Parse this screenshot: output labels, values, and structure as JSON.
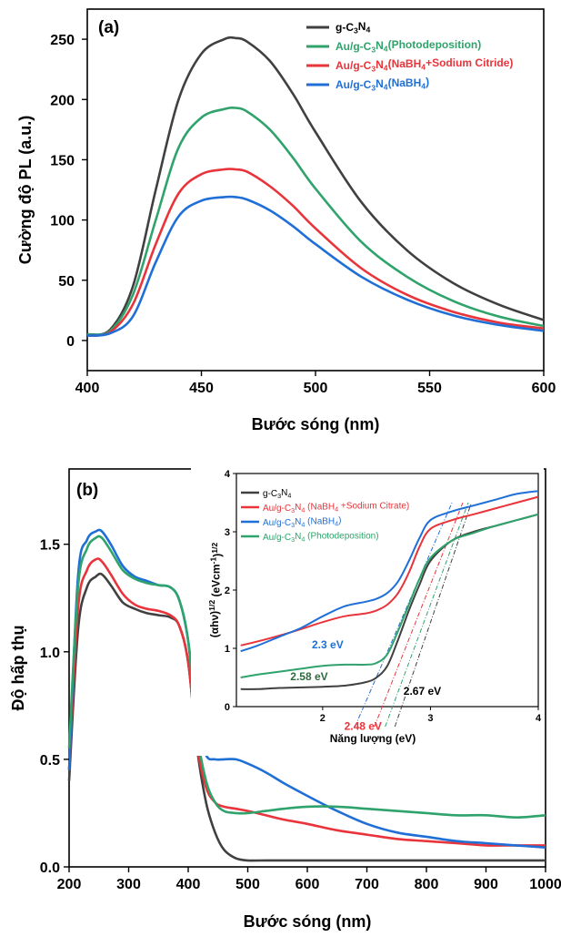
{
  "chart_data": [
    {
      "type": "line",
      "panel_label": "(a)",
      "xlabel": "Bước sóng (nm)",
      "ylabel": "Cường độ PL (a.u.)",
      "xlim": [
        400,
        600
      ],
      "ylim": [
        -25,
        275
      ],
      "x_ticks": [
        400,
        450,
        500,
        550,
        600
      ],
      "y_ticks": [
        0,
        50,
        100,
        150,
        200,
        250
      ],
      "legend_position": "top-right",
      "x": [
        400,
        410,
        420,
        430,
        440,
        450,
        460,
        465,
        470,
        480,
        490,
        500,
        520,
        540,
        560,
        580,
        600
      ],
      "series": [
        {
          "name": "g-C3N4",
          "label_parts": [
            "g-C",
            "3",
            "N",
            "4",
            ""
          ],
          "color": "#404040",
          "values": [
            5,
            9,
            45,
            125,
            200,
            238,
            250,
            251,
            248,
            232,
            205,
            173,
            115,
            75,
            48,
            30,
            17
          ]
        },
        {
          "name": "Au/g-C3N4(Photodeposition)",
          "label_parts": [
            "Au/g-C",
            "3",
            "N",
            "4",
            "(Photodeposition)"
          ],
          "color": "#2fa36b",
          "values": [
            5,
            8,
            38,
            100,
            160,
            185,
            192,
            193,
            190,
            175,
            152,
            126,
            82,
            53,
            33,
            20,
            12
          ]
        },
        {
          "name": "Au/g-C3N4(NaBH4+Sodium Citride)",
          "label_parts": [
            "Au/g-C",
            "3",
            "N",
            "4",
            "(NaBH",
            "4",
            "+Sodium Citride)"
          ],
          "color": "#e8343a",
          "values": [
            4,
            7,
            30,
            80,
            122,
            138,
            142,
            142,
            140,
            128,
            112,
            93,
            60,
            38,
            24,
            15,
            10
          ]
        },
        {
          "name": "Au/g-C3N4(NaBH4)",
          "label_parts": [
            "Au/g-C",
            "3",
            "N",
            "4",
            "(NaBH",
            "4",
            ")"
          ],
          "color": "#1f6fd6",
          "values": [
            4,
            6,
            20,
            65,
            103,
            116,
            119,
            119,
            117,
            108,
            95,
            80,
            53,
            34,
            21,
            13,
            8
          ]
        }
      ]
    },
    {
      "type": "line",
      "panel_label": "(b)",
      "xlabel": "Bước sóng (nm)",
      "ylabel": "Độ hấp thụ",
      "xlim": [
        200,
        1000
      ],
      "ylim": [
        0,
        1.85
      ],
      "x_ticks": [
        200,
        300,
        400,
        500,
        600,
        700,
        800,
        900,
        1000
      ],
      "y_ticks": [
        0.0,
        0.5,
        1.0,
        1.5
      ],
      "x": [
        200,
        215,
        230,
        245,
        255,
        270,
        290,
        310,
        330,
        350,
        370,
        385,
        400,
        415,
        430,
        445,
        460,
        480,
        500,
        530,
        560,
        600,
        650,
        700,
        750,
        800,
        850,
        900,
        950,
        1000
      ],
      "series": [
        {
          "name": "g-C3N4",
          "color": "#404040",
          "values": [
            0.4,
            1.1,
            1.3,
            1.35,
            1.36,
            1.31,
            1.23,
            1.2,
            1.18,
            1.17,
            1.16,
            1.12,
            0.95,
            0.55,
            0.3,
            0.16,
            0.08,
            0.04,
            0.03,
            0.03,
            0.03,
            0.03,
            0.03,
            0.03,
            0.03,
            0.03,
            0.03,
            0.03,
            0.03,
            0.03
          ]
        },
        {
          "name": "Au/g-C3N4 (NaBH4+Sodium Citrate)",
          "color": "#e8343a",
          "values": [
            0.45,
            1.2,
            1.38,
            1.43,
            1.42,
            1.36,
            1.27,
            1.22,
            1.2,
            1.19,
            1.17,
            1.12,
            0.95,
            0.56,
            0.37,
            0.3,
            0.28,
            0.27,
            0.26,
            0.24,
            0.22,
            0.2,
            0.17,
            0.15,
            0.13,
            0.12,
            0.11,
            0.1,
            0.1,
            0.1
          ]
        },
        {
          "name": "Au/g-C3N4 (NaBH4)",
          "color": "#1f6fd6",
          "values": [
            0.45,
            1.35,
            1.52,
            1.56,
            1.56,
            1.5,
            1.4,
            1.35,
            1.33,
            1.31,
            1.3,
            1.24,
            1.05,
            0.68,
            0.52,
            0.5,
            0.5,
            0.5,
            0.48,
            0.44,
            0.39,
            0.33,
            0.26,
            0.2,
            0.16,
            0.14,
            0.12,
            0.11,
            0.1,
            0.09
          ]
        },
        {
          "name": "Au/g-C3N4 (Photodeposition)",
          "color": "#2fa36b",
          "values": [
            0.55,
            1.3,
            1.48,
            1.53,
            1.53,
            1.47,
            1.38,
            1.34,
            1.32,
            1.31,
            1.3,
            1.24,
            1.05,
            0.62,
            0.4,
            0.3,
            0.26,
            0.25,
            0.25,
            0.26,
            0.27,
            0.28,
            0.28,
            0.27,
            0.26,
            0.25,
            0.24,
            0.24,
            0.23,
            0.24
          ]
        }
      ]
    },
    {
      "type": "line",
      "inset_of": "(b)",
      "xlabel": "Năng lượng (eV)",
      "ylabel_parts": [
        "(αhν)",
        "1/2",
        " (eVcm",
        "-1",
        ")",
        "1/2"
      ],
      "xlim": [
        1.2,
        4
      ],
      "ylim": [
        0,
        4
      ],
      "x_ticks": [
        2,
        3,
        4
      ],
      "y_ticks": [
        0,
        1,
        2,
        3,
        4
      ],
      "legend_position": "top-left",
      "x": [
        1.24,
        1.4,
        1.6,
        1.8,
        2.0,
        2.2,
        2.4,
        2.5,
        2.6,
        2.7,
        2.8,
        2.9,
        3.0,
        3.2,
        3.4,
        3.6,
        3.8,
        4.0
      ],
      "series": [
        {
          "name": "g-C3N4",
          "label_parts": [
            "g-C",
            "3",
            "N",
            "4",
            ""
          ],
          "color": "#404040",
          "values": [
            0.3,
            0.3,
            0.32,
            0.33,
            0.34,
            0.36,
            0.42,
            0.5,
            0.7,
            1.15,
            1.65,
            2.1,
            2.5,
            2.85,
            3.0,
            3.1,
            3.2,
            3.3
          ]
        },
        {
          "name": "Au/g-C3N4 (NaBH4+Sodium Citrate)",
          "label_parts": [
            "Au/g-C",
            "3",
            "N",
            "4",
            " (NaBH",
            "4",
            " +Sodium Citrate)"
          ],
          "color": "#e8343a",
          "values": [
            1.05,
            1.12,
            1.22,
            1.33,
            1.45,
            1.55,
            1.6,
            1.65,
            1.75,
            1.95,
            2.3,
            2.75,
            3.05,
            3.2,
            3.3,
            3.4,
            3.5,
            3.6
          ]
        },
        {
          "name": "Au/g-C3N4 (NaBH4)",
          "label_parts": [
            "Au/g-C",
            "3",
            "N",
            "4",
            " (NaBH",
            "4",
            ")"
          ],
          "color": "#1f6fd6",
          "values": [
            0.95,
            1.05,
            1.2,
            1.35,
            1.55,
            1.72,
            1.8,
            1.85,
            1.95,
            2.15,
            2.5,
            2.9,
            3.2,
            3.35,
            3.45,
            3.55,
            3.65,
            3.7
          ]
        },
        {
          "name": "Au/g-C3N4 (Photodeposition)",
          "label_parts": [
            "Au/g-C",
            "3",
            "N",
            "4",
            " (Photodeposition)"
          ],
          "color": "#2fa36b",
          "values": [
            0.5,
            0.55,
            0.6,
            0.65,
            0.7,
            0.72,
            0.72,
            0.75,
            0.9,
            1.3,
            1.75,
            2.2,
            2.55,
            2.85,
            2.98,
            3.1,
            3.2,
            3.3
          ]
        }
      ],
      "tangent_lines": [
        {
          "color": "#1f6fd6",
          "x0": 2.3,
          "x1": 3.2,
          "y_at_x1": 3.5
        },
        {
          "color": "#e8343a",
          "x0": 2.48,
          "x1": 3.3,
          "y_at_x1": 3.5
        },
        {
          "color": "#2fa36b",
          "x0": 2.58,
          "x1": 3.35,
          "y_at_x1": 3.5
        },
        {
          "color": "#404040",
          "x0": 2.67,
          "x1": 3.38,
          "y_at_x1": 3.5
        }
      ],
      "annotations": [
        {
          "text": "2.3 eV",
          "color": "#1f6fd6",
          "x": 1.9,
          "y": 1.0
        },
        {
          "text": "2.58 eV",
          "color": "#2e6b3f",
          "x": 1.7,
          "y": 0.45
        },
        {
          "text": "2.67 eV",
          "color": "#000000",
          "x": 2.75,
          "y": 0.2
        },
        {
          "text": "2.48 eV",
          "color": "#e8343a",
          "x": 2.2,
          "y": -0.4
        }
      ]
    }
  ]
}
